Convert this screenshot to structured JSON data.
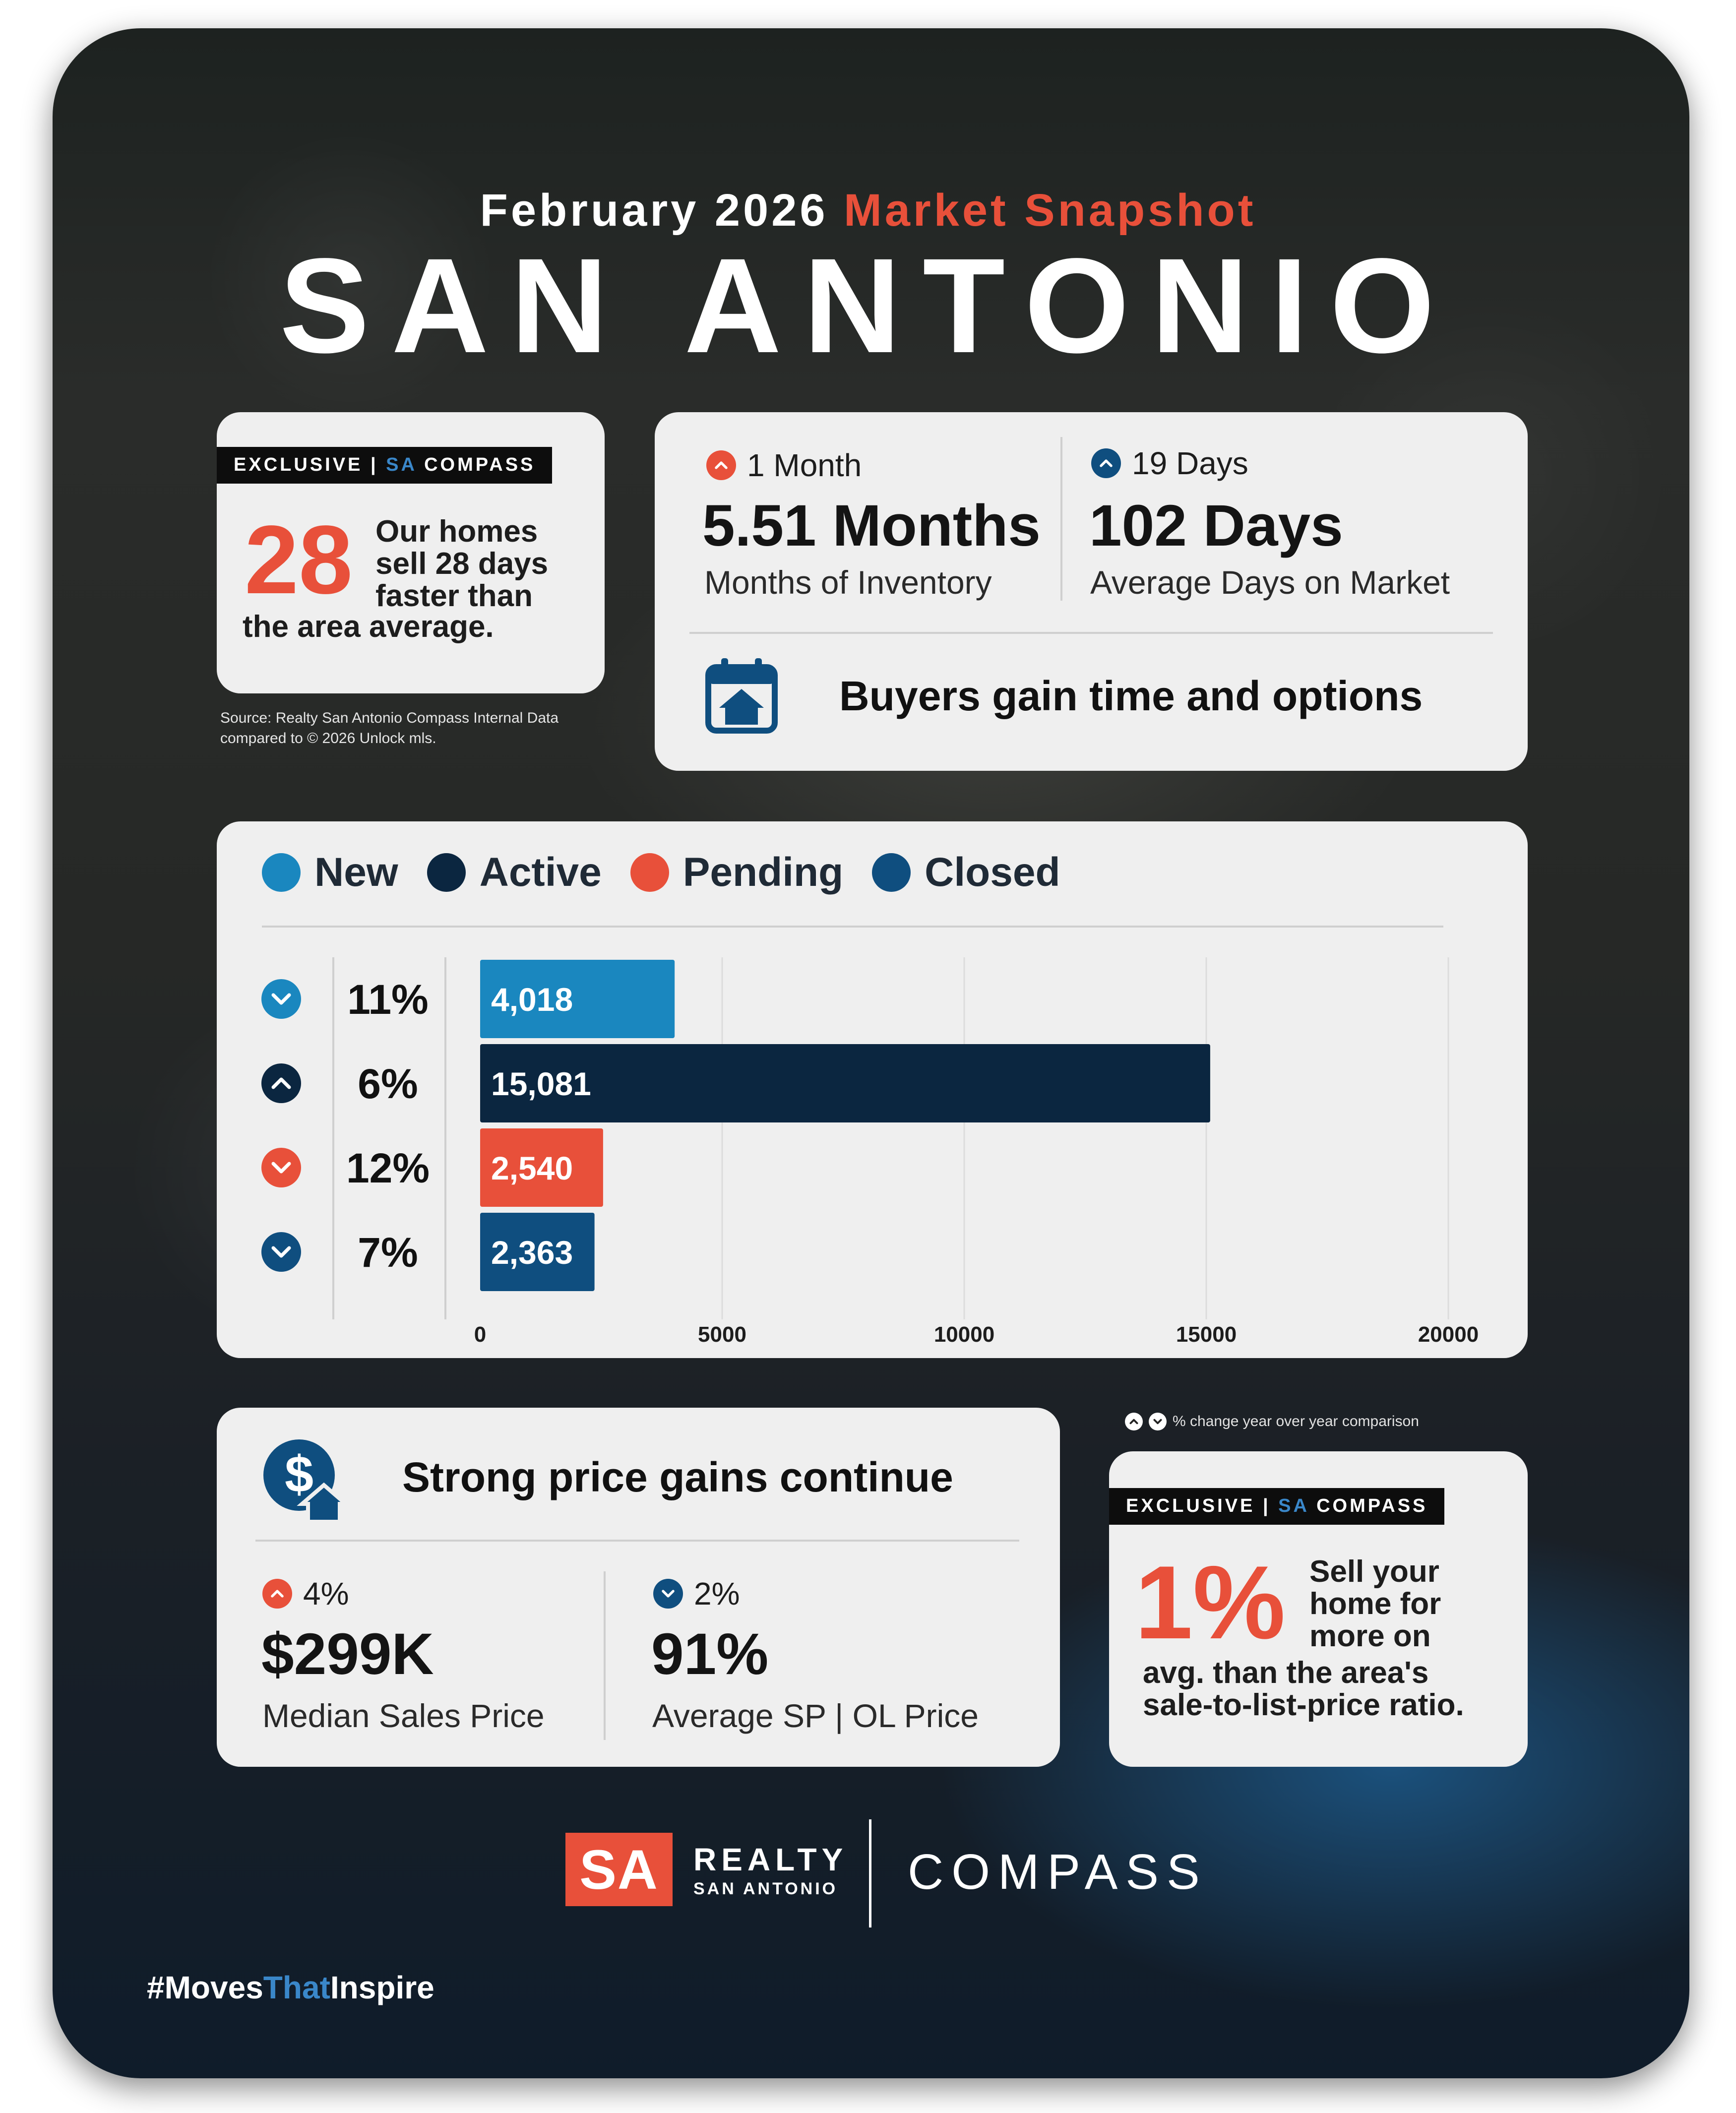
{
  "header": {
    "subtitle_prefix": "February 2026",
    "subtitle_accent": "Market Snapshot",
    "title": "SAN ANTONIO"
  },
  "speed_card": {
    "tag_left": "EXCLUSIVE |",
    "tag_sa": "SA",
    "tag_right": "COMPASS",
    "value": "28",
    "text_lines": [
      "Our homes",
      "sell 28 days",
      "faster than"
    ],
    "text_last": "the area average."
  },
  "source": {
    "line1": "Source: Realty San Antonio Compass Internal Data",
    "line2": "compared to © 2026 Unlock mls."
  },
  "market_card": {
    "inventory": {
      "change_direction": "up",
      "change": "1 Month",
      "value": "5.51 Months",
      "label": "Months of Inventory"
    },
    "dom": {
      "change_direction": "up",
      "change": "19 Days",
      "value": "102 Days",
      "label": "Average Days on Market"
    },
    "headline": "Buyers gain time and options",
    "icon": "calendar-house-icon"
  },
  "chart_data": {
    "type": "bar",
    "orientation": "horizontal",
    "categories": [
      "New",
      "Active",
      "Pending",
      "Closed"
    ],
    "values": [
      4018,
      15081,
      2540,
      2363
    ],
    "value_labels": [
      "4,018",
      "15,081",
      "2,540",
      "2,363"
    ],
    "changes": [
      "11%",
      "6%",
      "12%",
      "7%"
    ],
    "change_directions": [
      "down",
      "up",
      "down",
      "down"
    ],
    "colors": [
      "#1a87bf",
      "#0b2640",
      "#e8503a",
      "#0f4e7f"
    ],
    "xlim": [
      0,
      20000
    ],
    "xticks": [
      0,
      5000,
      10000,
      15000,
      20000
    ],
    "grid": true,
    "legend": "top"
  },
  "legend_note": "% change year over year comparison",
  "price_card": {
    "headline": "Strong price gains continue",
    "icon": "dollar-house-icon",
    "median": {
      "change_direction": "up",
      "change": "4%",
      "value": "$299K",
      "label": "Median Sales Price"
    },
    "ratio": {
      "change_direction": "down",
      "change": "2%",
      "value": "91%",
      "label": "Average SP | OL Price"
    }
  },
  "sell_card": {
    "tag_left": "EXCLUSIVE |",
    "tag_sa": "SA",
    "tag_right": "COMPASS",
    "value": "1%",
    "text_lines": [
      "Sell your",
      "home for",
      "more on"
    ],
    "text_last_1": "avg. than the area's",
    "text_last_2": "sale-to-list-price ratio."
  },
  "footer": {
    "logo_sa": "SA",
    "logo_realty": "REALTY",
    "logo_city": "SAN ANTONIO",
    "compass": "COMPASS",
    "hashtag_a": "#Moves",
    "hashtag_b": "That",
    "hashtag_c": "Inspire"
  },
  "colors": {
    "accent_orange": "#e8503a",
    "navy": "#0e2a43",
    "card_bg": "#efefef",
    "up_badge": "#e8503a",
    "down_badge": "#0f4e7f"
  }
}
